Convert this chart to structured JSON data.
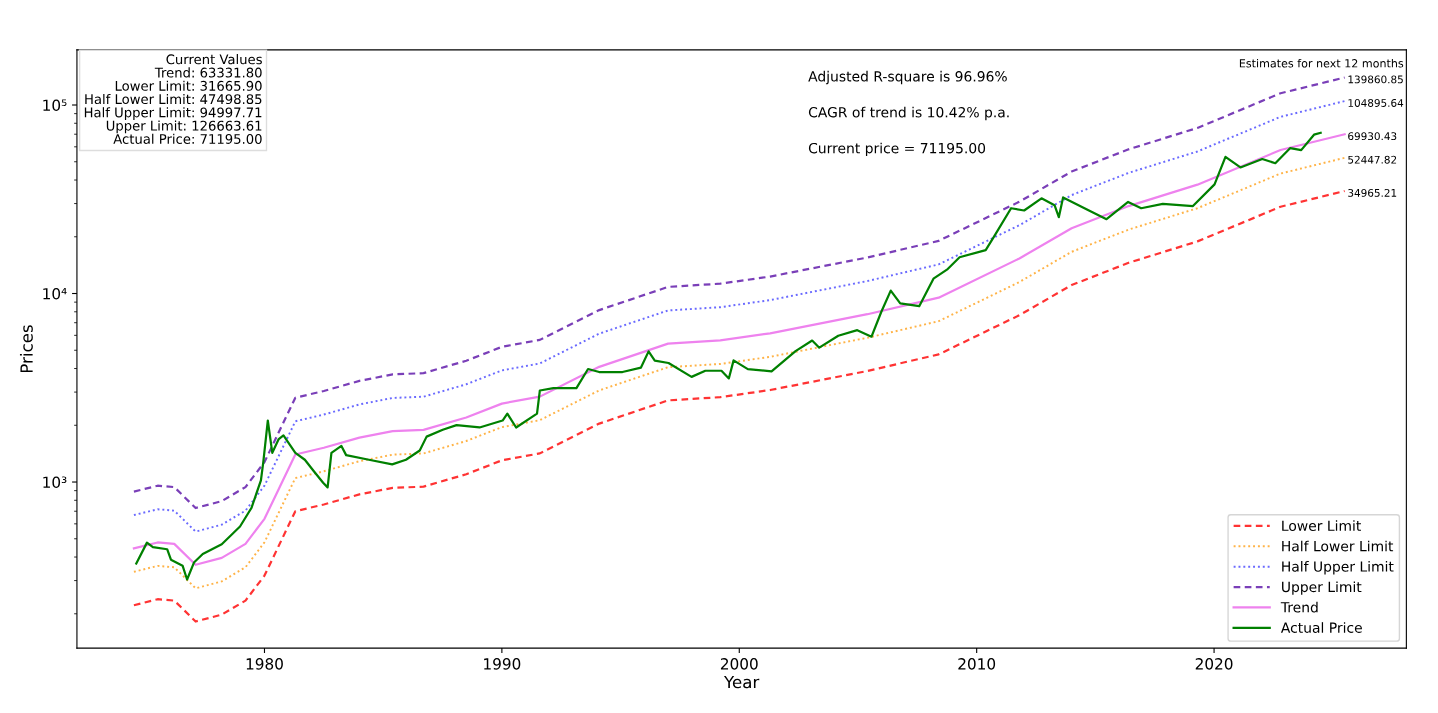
{
  "chart_data": {
    "type": "line",
    "xlabel": "Year",
    "ylabel": "Prices",
    "log": "y",
    "grid": false,
    "legend": "bottom right",
    "xlim": [
      1972.1,
      2028.1
    ],
    "xticks": [
      1980,
      1990,
      2000,
      2010,
      2020
    ],
    "ylim": [
      131.5,
      196000
    ],
    "yticks": [
      {
        "value": 1000,
        "label": "10³"
      },
      {
        "value": 10000,
        "label": "10⁴"
      },
      {
        "value": 100000,
        "label": "10⁵"
      }
    ],
    "series": [
      {
        "name": "Lower Limit",
        "color": "#ff3333",
        "line_style": "dashed",
        "x": [
          1974.5,
          1975.5,
          1976.2,
          1977.1,
          1978.2,
          1979.2,
          1980.0,
          1981.3,
          1982.5,
          1984.0,
          1985.4,
          1986.7,
          1988.5,
          1990.0,
          1991.6,
          1994.1,
          1997.0,
          1999.2,
          2001.3,
          2005.4,
          2008.4,
          2011.8,
          2014.0,
          2016.4,
          2019.3,
          2022.8,
          2025.5
        ],
        "values": [
          222,
          239,
          235,
          182,
          198,
          235,
          319,
          700,
          760,
          860,
          931,
          945,
          1100,
          1303,
          1419,
          2041,
          2710,
          2820,
          3076,
          3883,
          4755,
          7675,
          11090,
          14550,
          18900,
          28850,
          34965.21
        ],
        "value_labels": [
          null,
          null,
          null,
          null,
          null,
          null,
          null,
          null,
          null,
          null,
          null,
          null,
          null,
          null,
          null,
          null,
          null,
          null,
          null,
          null,
          null,
          null,
          null,
          null,
          null,
          null,
          "34965.21"
        ]
      },
      {
        "name": "Half Lower Limit",
        "color": "#ffb347",
        "line_style": "dotted",
        "x": [
          1974.5,
          1975.5,
          1976.2,
          1977.1,
          1978.2,
          1979.2,
          1980.0,
          1981.3,
          1982.5,
          1984.0,
          1985.4,
          1986.7,
          1988.5,
          1990.0,
          1991.6,
          1994.1,
          1997.0,
          1999.2,
          2001.3,
          2005.4,
          2008.4,
          2011.8,
          2014.0,
          2016.4,
          2019.3,
          2022.8,
          2025.5
        ],
        "values": [
          334,
          359,
          353,
          273,
          297,
          353,
          479,
          1050,
          1140,
          1290,
          1397,
          1418,
          1650,
          1955,
          2129,
          3062,
          4065,
          4230,
          4614,
          5825,
          7133,
          11510,
          16640,
          21830,
          28350,
          43280,
          52447.82
        ],
        "value_labels": [
          null,
          null,
          null,
          null,
          null,
          null,
          null,
          null,
          null,
          null,
          null,
          null,
          null,
          null,
          null,
          null,
          null,
          null,
          null,
          null,
          null,
          null,
          null,
          null,
          null,
          null,
          "52447.82"
        ]
      },
      {
        "name": "Half Upper Limit",
        "color": "#6a6aff",
        "line_style": "dotted",
        "x": [
          1974.5,
          1975.5,
          1976.2,
          1977.1,
          1978.2,
          1979.2,
          1980.0,
          1981.3,
          1982.5,
          1984.0,
          1985.4,
          1986.7,
          1988.5,
          1990.0,
          1991.6,
          1994.1,
          1997.0,
          1999.2,
          2001.3,
          2005.4,
          2008.4,
          2011.8,
          2014.0,
          2016.4,
          2019.3,
          2022.8,
          2025.5
        ],
        "values": [
          668,
          717,
          705,
          546,
          594,
          705,
          957,
          2100,
          2280,
          2580,
          2793,
          2835,
          3300,
          3909,
          4257,
          6125,
          8130,
          8460,
          9228,
          11650,
          14270,
          23030,
          33270,
          43650,
          56700,
          86550,
          104895.64
        ],
        "value_labels": [
          null,
          null,
          null,
          null,
          null,
          null,
          null,
          null,
          null,
          null,
          null,
          null,
          null,
          null,
          null,
          null,
          null,
          null,
          null,
          null,
          null,
          null,
          null,
          null,
          null,
          null,
          "104895.64"
        ]
      },
      {
        "name": "Upper Limit",
        "color": "#7a3fb8",
        "line_style": "dashed",
        "x": [
          1974.5,
          1975.5,
          1976.2,
          1977.1,
          1978.2,
          1979.2,
          1980.0,
          1981.3,
          1982.5,
          1984.0,
          1985.4,
          1986.7,
          1988.5,
          1990.0,
          1991.6,
          1994.1,
          1997.0,
          1999.2,
          2001.3,
          2005.4,
          2008.4,
          2011.8,
          2014.0,
          2016.4,
          2019.3,
          2022.8,
          2025.5
        ],
        "values": [
          890,
          956,
          940,
          728,
          792,
          940,
          1276,
          2800,
          3040,
          3440,
          3724,
          3780,
          4400,
          5212,
          5676,
          8166,
          10840,
          11280,
          12300,
          15530,
          19020,
          30700,
          44360,
          58200,
          75600,
          115400,
          139860.85
        ],
        "value_labels": [
          null,
          null,
          null,
          null,
          null,
          null,
          null,
          null,
          null,
          null,
          null,
          null,
          null,
          null,
          null,
          null,
          null,
          null,
          null,
          null,
          null,
          null,
          null,
          null,
          null,
          null,
          "139860.85"
        ]
      },
      {
        "name": "Trend",
        "color": "#ee82ee",
        "line_style": "solid",
        "x": [
          1974.5,
          1975.5,
          1976.2,
          1977.1,
          1978.2,
          1979.2,
          1980.0,
          1981.3,
          1982.5,
          1984.0,
          1985.4,
          1986.7,
          1988.5,
          1990.0,
          1991.6,
          1994.1,
          1997.0,
          1999.2,
          2001.3,
          2005.4,
          2008.4,
          2011.8,
          2014.0,
          2016.4,
          2019.3,
          2022.8,
          2025.5
        ],
        "values": [
          445,
          478,
          470,
          364,
          396,
          470,
          638,
          1400,
          1520,
          1720,
          1862,
          1890,
          2200,
          2606,
          2838,
          4083,
          5420,
          5640,
          6152,
          7766,
          9510,
          15350,
          22180,
          29100,
          37800,
          57700,
          69930.43
        ],
        "value_labels": [
          null,
          null,
          null,
          null,
          null,
          null,
          null,
          null,
          null,
          null,
          null,
          null,
          null,
          null,
          null,
          null,
          null,
          null,
          null,
          null,
          null,
          null,
          null,
          null,
          null,
          null,
          "69930.43"
        ]
      },
      {
        "name": "Actual Price",
        "color": "#008000",
        "line_style": "solid",
        "x": [
          1974.6,
          1975.05,
          1975.3,
          1975.9,
          1976.06,
          1976.55,
          1976.74,
          1977.03,
          1977.4,
          1978.2,
          1978.97,
          1979.45,
          1979.85,
          1979.95,
          1980.14,
          1980.33,
          1980.6,
          1980.8,
          1981.3,
          1981.7,
          1982.08,
          1982.47,
          1982.66,
          1982.82,
          1983.24,
          1983.44,
          1984.4,
          1985.38,
          1985.96,
          1986.54,
          1986.83,
          1987.51,
          1988.09,
          1989.06,
          1990.03,
          1990.23,
          1990.6,
          1991.48,
          1991.6,
          1992.17,
          1993.14,
          1993.63,
          1994.1,
          1995.08,
          1995.86,
          1996.18,
          1996.44,
          1997.02,
          1997.99,
          1998.57,
          1999.25,
          1999.56,
          1999.76,
          2000.36,
          2001.36,
          2002.37,
          2003.07,
          2003.37,
          2004.17,
          2004.97,
          2005.57,
          2005.98,
          2006.38,
          2006.78,
          2007.58,
          2008.18,
          2008.78,
          2009.28,
          2010.38,
          2010.73,
          2011.45,
          2012.0,
          2012.73,
          2013.28,
          2013.46,
          2013.64,
          2014.73,
          2015.47,
          2016.38,
          2016.93,
          2017.84,
          2019.11,
          2020.02,
          2020.48,
          2021.11,
          2022.03,
          2022.58,
          2023.21,
          2023.67,
          2024.21,
          2024.49
        ],
        "values": [
          370,
          477,
          451,
          440,
          387,
          360,
          304,
          374,
          415,
          468,
          581,
          728,
          1020,
          1276,
          2120,
          1429,
          1690,
          1768,
          1429,
          1313,
          1141,
          991,
          937,
          1429,
          1554,
          1389,
          1313,
          1241,
          1313,
          1469,
          1741,
          1894,
          2003,
          1947,
          2120,
          2307,
          1947,
          2307,
          3059,
          3147,
          3147,
          3976,
          3833,
          3833,
          4046,
          4934,
          4410,
          4280,
          3613,
          3893,
          3893,
          3545,
          4420,
          3970,
          3863,
          4950,
          5630,
          5160,
          5970,
          6390,
          5900,
          7980,
          10360,
          8870,
          8570,
          11990,
          13480,
          15570,
          17000,
          20040,
          28340,
          27570,
          32000,
          29400,
          25400,
          32350,
          27570,
          24800,
          30600,
          28340,
          29860,
          29100,
          37930,
          53120,
          46640,
          51700,
          49100,
          59100,
          57600,
          69600,
          71195
        ]
      }
    ],
    "annotations": [
      "Current Values\nTrend: 63331.80\nLower Limit: 31665.90\nHalf Lower Limit: 47498.85\nHalf Upper Limit: 94997.71\nUpper Limit: 126663.61\nActual Price: 71195.00",
      "Adjusted R-square is 96.96%",
      "CAGR of trend is 10.42% p.a.",
      "Current price = 71195.00",
      "Estimates for next 12 months"
    ]
  }
}
